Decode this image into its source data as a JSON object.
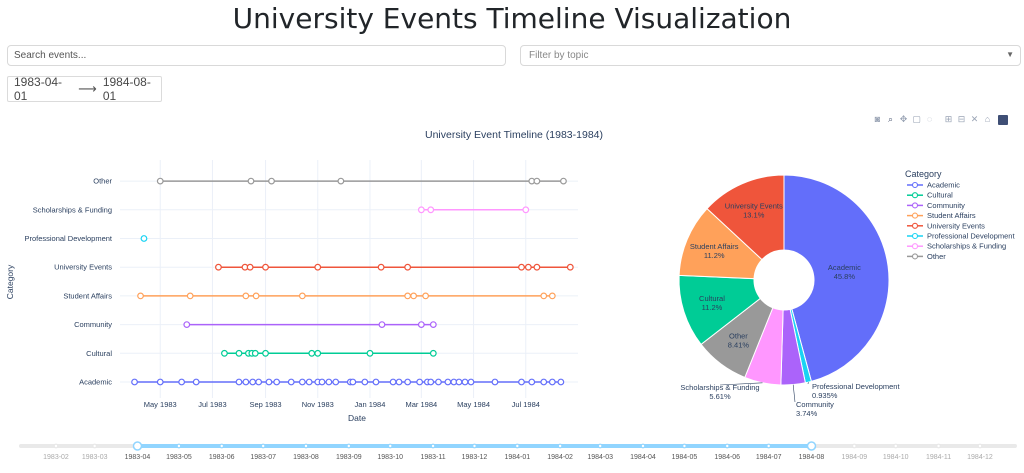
{
  "header": {
    "title": "University Events Timeline Visualization"
  },
  "controls": {
    "search_placeholder": "Search events...",
    "topic_placeholder": "Filter by topic",
    "date_start": "1983-04-01",
    "date_end": "1984-08-01"
  },
  "modebar": {
    "icons": [
      "camera-icon",
      "zoom-icon",
      "pan-icon",
      "box-select-icon",
      "lasso-icon",
      "zoom-in-icon",
      "zoom-out-icon",
      "autoscale-icon",
      "reset-icon",
      "plotly-logo-icon"
    ]
  },
  "chart_data": [
    {
      "type": "line",
      "title": "University Event Timeline (1983-1984)",
      "xlabel": "Date",
      "ylabel": "Category",
      "xlim": [
        "1983-03-15",
        "1984-08-31"
      ],
      "x_ticks": [
        "1983-05-01",
        "1983-07-01",
        "1983-09-01",
        "1983-11-01",
        "1984-01-01",
        "1984-03-01",
        "1984-05-01",
        "1984-07-01"
      ],
      "x_tick_labels": [
        "May 1983",
        "Jul 1983",
        "Sep 1983",
        "Nov 1983",
        "Jan 1984",
        "Mar 1984",
        "May 1984",
        "Jul 1984"
      ],
      "categories": [
        "Academic",
        "Cultural",
        "Community",
        "Student Affairs",
        "University Events",
        "Professional Development",
        "Scholarships & Funding",
        "Other"
      ],
      "grid": true,
      "series": [
        {
          "name": "Academic",
          "color": "#636efa",
          "x": [
            "1983-04-01",
            "1983-05-01",
            "1983-05-26",
            "1983-06-12",
            "1983-08-01",
            "1983-08-09",
            "1983-08-17",
            "1983-08-24",
            "1983-09-05",
            "1983-09-14",
            "1983-10-01",
            "1983-10-14",
            "1983-10-22",
            "1983-11-01",
            "1983-11-06",
            "1983-11-14",
            "1983-11-22",
            "1983-12-09",
            "1983-12-12",
            "1983-12-26",
            "1984-01-08",
            "1984-01-28",
            "1984-02-04",
            "1984-02-14",
            "1984-02-28",
            "1984-03-08",
            "1984-03-12",
            "1984-03-21",
            "1984-04-01",
            "1984-04-08",
            "1984-04-14",
            "1984-04-21",
            "1984-04-28",
            "1984-05-26",
            "1984-06-26",
            "1984-07-08",
            "1984-07-22",
            "1984-08-01",
            "1984-08-11"
          ]
        },
        {
          "name": "Cultural",
          "color": "#00cc96",
          "x": [
            "1983-07-15",
            "1983-08-01",
            "1983-08-12",
            "1983-08-16",
            "1983-08-20",
            "1983-09-01",
            "1983-10-25",
            "1983-11-01",
            "1984-01-01",
            "1984-03-15"
          ]
        },
        {
          "name": "Community",
          "color": "#ab63fa",
          "x": [
            "1983-06-01",
            "1984-01-15",
            "1984-03-01",
            "1984-03-15"
          ]
        },
        {
          "name": "Student Affairs",
          "color": "#ffa15a",
          "x": [
            "1983-04-08",
            "1983-06-05",
            "1983-08-09",
            "1983-08-21",
            "1983-10-14",
            "1984-02-14",
            "1984-02-21",
            "1984-03-06",
            "1984-07-22",
            "1984-08-01"
          ]
        },
        {
          "name": "University Events",
          "color": "#ef553b",
          "x": [
            "1983-07-08",
            "1983-08-08",
            "1983-08-14",
            "1983-09-01",
            "1983-11-01",
            "1984-01-14",
            "1984-02-14",
            "1984-06-26",
            "1984-07-04",
            "1984-07-14",
            "1984-08-22"
          ]
        },
        {
          "name": "Professional Development",
          "color": "#19d3f3",
          "x": [
            "1983-04-12"
          ]
        },
        {
          "name": "Scholarships & Funding",
          "color": "#ff97ff",
          "x": [
            "1984-03-01",
            "1984-03-12",
            "1984-07-01"
          ]
        },
        {
          "name": "Other",
          "color": "#999999",
          "x": [
            "1983-05-01",
            "1983-08-15",
            "1983-09-08",
            "1983-11-28",
            "1984-07-08",
            "1984-07-14",
            "1984-08-14"
          ]
        }
      ]
    },
    {
      "type": "pie",
      "hole": true,
      "legend_title": "Category",
      "legend_position": "top-right",
      "slices": [
        {
          "label": "Academic",
          "value": 45.8,
          "display": "45.8%",
          "color": "#636efa"
        },
        {
          "label": "Professional Development",
          "value": 0.935,
          "display": "0.935%",
          "color": "#19d3f3"
        },
        {
          "label": "Community",
          "value": 3.74,
          "display": "3.74%",
          "color": "#ab63fa"
        },
        {
          "label": "Scholarships & Funding",
          "value": 5.61,
          "display": "5.61%",
          "color": "#ff97ff"
        },
        {
          "label": "Other",
          "value": 8.41,
          "display": "8.41%",
          "color": "#999999"
        },
        {
          "label": "Cultural",
          "value": 11.2,
          "display": "11.2%",
          "color": "#00cc96"
        },
        {
          "label": "Student Affairs",
          "value": 11.2,
          "display": "11.2%",
          "color": "#ffa15a"
        },
        {
          "label": "University Events",
          "value": 13.1,
          "display": "13.1%",
          "color": "#ef553b"
        }
      ],
      "legend": [
        "Academic",
        "Cultural",
        "Community",
        "Student Affairs",
        "University Events",
        "Professional Development",
        "Scholarships & Funding",
        "Other"
      ]
    }
  ],
  "slider": {
    "min": "1983-02-01",
    "max": "1984-12-01",
    "handle_start": "1983-04-01",
    "handle_end": "1984-08-01",
    "marks": [
      "1983-02",
      "1983-03",
      "1983-04",
      "1983-05",
      "1983-06",
      "1983-07",
      "1983-08",
      "1983-09",
      "1983-10",
      "1983-11",
      "1983-12",
      "1984-01",
      "1984-02",
      "1984-03",
      "1984-04",
      "1984-05",
      "1984-06",
      "1984-07",
      "1984-08",
      "1984-09",
      "1984-10",
      "1984-11",
      "1984-12"
    ]
  }
}
